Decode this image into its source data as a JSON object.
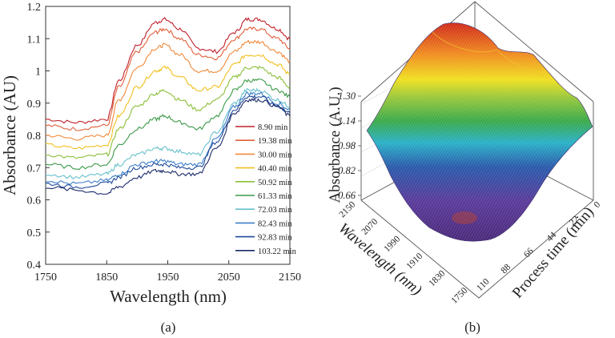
{
  "chart_data": [
    {
      "type": "line",
      "panel_label": "(a)",
      "title": "",
      "xlabel": "Wavelength (nm)",
      "ylabel": "Absorbance (AU)",
      "xlim": [
        1750,
        2150
      ],
      "ylim": [
        0.4,
        1.2
      ],
      "x_ticks": [
        "1750",
        "1850",
        "1950",
        "2050",
        "2150"
      ],
      "y_ticks": [
        "0.4",
        "0.5",
        "0.6",
        "0.7",
        "0.8",
        "0.9",
        "1",
        "1.1",
        "1.2"
      ],
      "x": [
        1750,
        1800,
        1850,
        1870,
        1900,
        1930,
        1945,
        1970,
        2000,
        2030,
        2060,
        2080,
        2100,
        2130,
        2150
      ],
      "series": [
        {
          "name": "8.90 min",
          "color": "#c0202a",
          "values": [
            0.85,
            0.84,
            0.85,
            0.97,
            1.08,
            1.15,
            1.16,
            1.13,
            1.07,
            1.06,
            1.12,
            1.16,
            1.16,
            1.13,
            1.1
          ]
        },
        {
          "name": "19.38 min",
          "color": "#e0603a",
          "values": [
            0.83,
            0.82,
            0.83,
            0.95,
            1.06,
            1.12,
            1.13,
            1.1,
            1.05,
            1.04,
            1.1,
            1.13,
            1.13,
            1.1,
            1.07
          ]
        },
        {
          "name": "30.00 min",
          "color": "#f08a3a",
          "values": [
            0.8,
            0.79,
            0.8,
            0.91,
            1.01,
            1.07,
            1.08,
            1.05,
            1.0,
            1.0,
            1.06,
            1.09,
            1.09,
            1.06,
            1.03
          ]
        },
        {
          "name": "40.40 min",
          "color": "#f0c020",
          "values": [
            0.77,
            0.76,
            0.77,
            0.86,
            0.95,
            1.0,
            1.01,
            0.98,
            0.94,
            0.95,
            1.02,
            1.05,
            1.05,
            1.02,
            0.99
          ]
        },
        {
          "name": "50.92 min",
          "color": "#8cbf3a",
          "values": [
            0.74,
            0.73,
            0.74,
            0.82,
            0.89,
            0.93,
            0.94,
            0.91,
            0.88,
            0.91,
            0.98,
            1.01,
            1.01,
            0.98,
            0.95
          ]
        },
        {
          "name": "61.33 min",
          "color": "#3c9a48",
          "values": [
            0.71,
            0.7,
            0.71,
            0.77,
            0.82,
            0.85,
            0.86,
            0.84,
            0.82,
            0.86,
            0.94,
            0.97,
            0.97,
            0.94,
            0.92
          ]
        },
        {
          "name": "72.03 min",
          "color": "#68c0cc",
          "values": [
            0.68,
            0.67,
            0.68,
            0.71,
            0.74,
            0.76,
            0.76,
            0.75,
            0.74,
            0.81,
            0.9,
            0.94,
            0.94,
            0.91,
            0.89
          ]
        },
        {
          "name": "82.43 min",
          "color": "#3c7ec8",
          "values": [
            0.66,
            0.65,
            0.66,
            0.68,
            0.71,
            0.72,
            0.72,
            0.71,
            0.71,
            0.79,
            0.89,
            0.93,
            0.93,
            0.9,
            0.88
          ]
        },
        {
          "name": "92.83 min",
          "color": "#1f4a9a",
          "values": [
            0.65,
            0.64,
            0.65,
            0.67,
            0.7,
            0.71,
            0.71,
            0.7,
            0.7,
            0.78,
            0.88,
            0.92,
            0.92,
            0.89,
            0.87
          ]
        },
        {
          "name": "103.22 min",
          "color": "#1a2a6a",
          "values": [
            0.64,
            0.63,
            0.62,
            0.64,
            0.67,
            0.69,
            0.69,
            0.68,
            0.68,
            0.76,
            0.87,
            0.91,
            0.91,
            0.89,
            0.86
          ]
        }
      ],
      "legend_position": "right"
    },
    {
      "type": "surface",
      "panel_label": "(b)",
      "title": "",
      "xlabel": "Process time (min)",
      "ylabel": "Wavelength (nm)",
      "zlabel": "Absorbance (A.U.)",
      "x_ticks": [
        "0",
        "22",
        "44",
        "66",
        "88",
        "110"
      ],
      "y_ticks": [
        "2150",
        "2070",
        "1990",
        "1910",
        "1830",
        "1750"
      ],
      "z_ticks": [
        "0.66",
        "0.82",
        "0.98",
        "1.14",
        "1.30"
      ],
      "z_range": [
        0.6,
        1.35
      ],
      "colormap": [
        "#5a2a8a",
        "#3a4aa8",
        "#2aa0c8",
        "#3aaa4a",
        "#e8e020",
        "#f08a20",
        "#d83020"
      ],
      "description_values": {
        "max_z": 1.2,
        "min_z": 0.62
      }
    }
  ]
}
